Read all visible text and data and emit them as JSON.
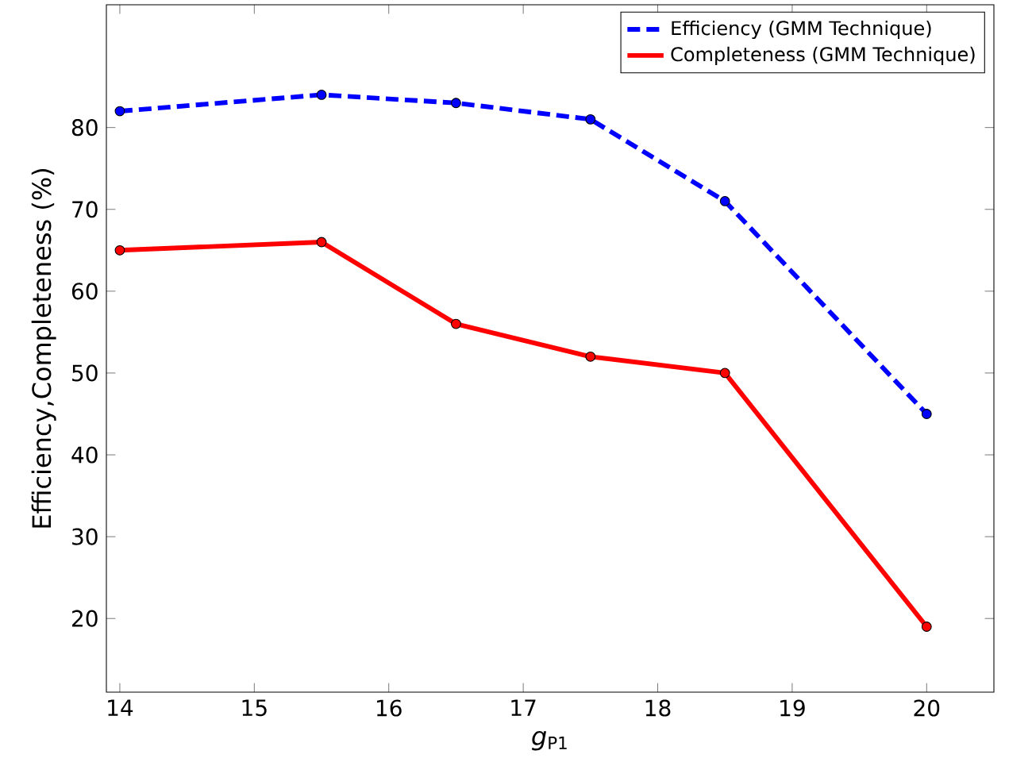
{
  "chart_data": {
    "type": "line",
    "xlabel": "*g*$_{P1}$",
    "ylabel": "Efficiency,Completeness (%)",
    "x": [
      14,
      15.5,
      16.5,
      17.5,
      18.5,
      20
    ],
    "series": [
      {
        "name": "Efficiency (GMM Technique)",
        "color": "#0000ff",
        "line_style": "dashed",
        "values": [
          82,
          84,
          83,
          81,
          71,
          45
        ]
      },
      {
        "name": "Completeness (GMM Technique)",
        "color": "#ff0000",
        "line_style": "solid",
        "values": [
          65,
          66,
          56,
          52,
          50,
          19
        ]
      }
    ],
    "marker": "circle",
    "legend": "top right",
    "xlim": [
      13.9,
      20.5
    ],
    "ylim": [
      11,
      95
    ],
    "xticks": [
      14,
      15,
      16,
      17,
      18,
      19,
      20
    ],
    "yticks": [
      20,
      30,
      40,
      50,
      60,
      70,
      80
    ]
  }
}
